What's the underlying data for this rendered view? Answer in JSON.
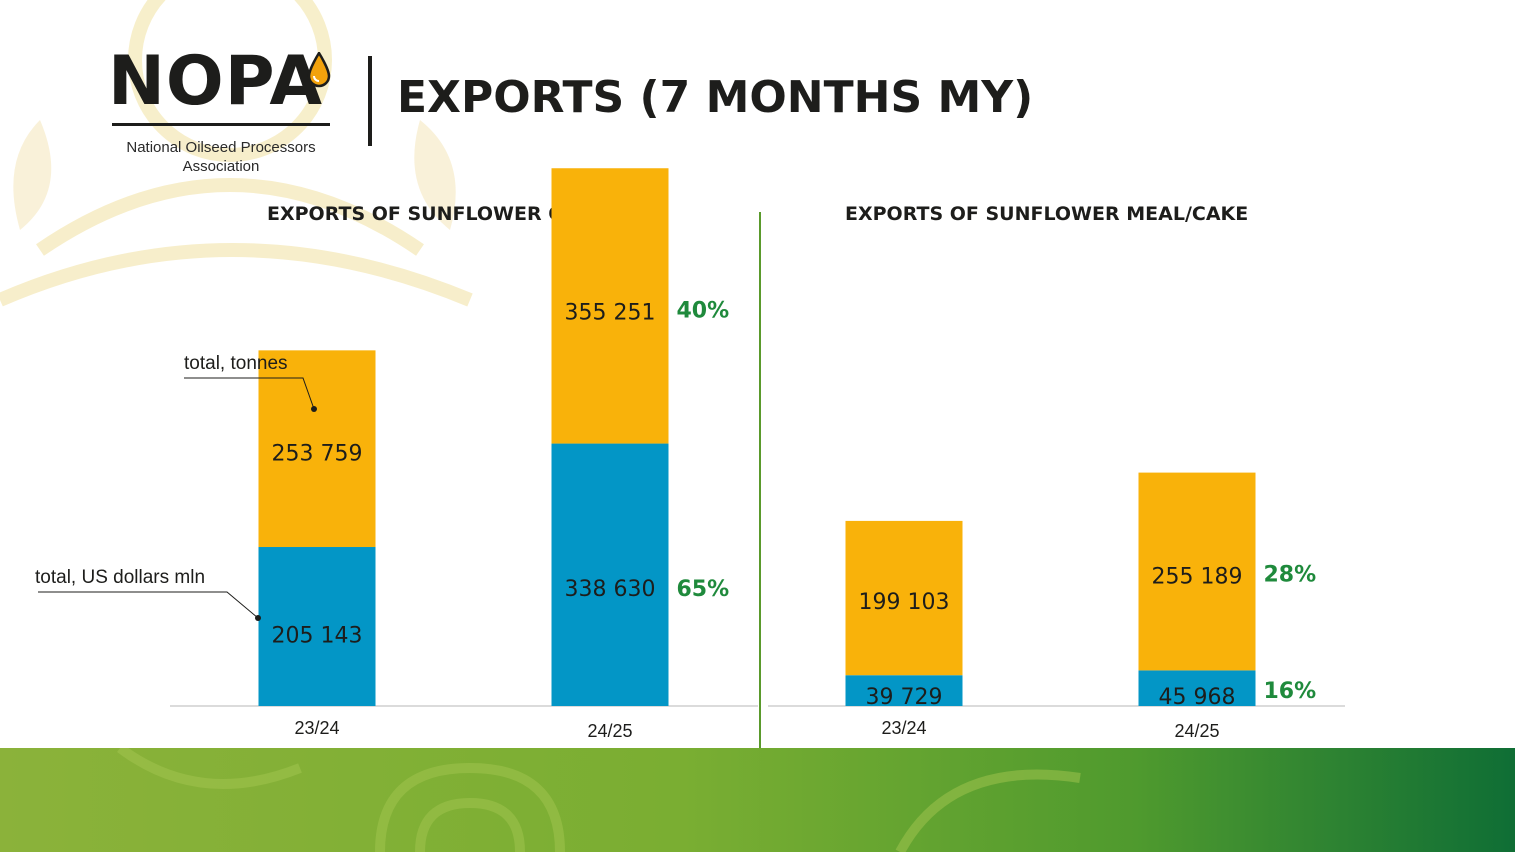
{
  "logo": {
    "wordmark": "NOPA",
    "subtitle_line1": "National Oilseed Processors",
    "subtitle_line2": "Association"
  },
  "page_title": "EXPORTS (7 MONTHS MY)",
  "colors": {
    "tonnes": "#f9b20a",
    "usd": "#0396c6",
    "growth": "#1f8a3c",
    "divider": "#5a9a2c"
  },
  "chart_data": [
    {
      "type": "bar",
      "stacked": true,
      "title": "EXPORTS OF SUNFLOWER OIL",
      "categories": [
        "23/24",
        "24/25"
      ],
      "series": [
        {
          "name": "total, US dollars mln",
          "values": [
            205143,
            338630
          ],
          "color": "#0396c6",
          "growth_labels": [
            "",
            "65%"
          ]
        },
        {
          "name": "total, tonnes",
          "values": [
            253759,
            355251
          ],
          "color": "#f9b20a",
          "growth_labels": [
            "",
            "40%"
          ]
        }
      ],
      "value_labels": [
        [
          "205 143",
          "338 630"
        ],
        [
          "253 759",
          "355 251"
        ]
      ],
      "annotations": [
        "total, tonnes",
        "total, US dollars mln"
      ],
      "ylim": [
        0,
        700000
      ],
      "grid": false,
      "legend": "none"
    },
    {
      "type": "bar",
      "stacked": true,
      "title": "EXPORTS OF SUNFLOWER MEAL/CAKE",
      "categories": [
        "23/24",
        "24/25"
      ],
      "series": [
        {
          "name": "total, US dollars mln",
          "values": [
            39729,
            45968
          ],
          "color": "#0396c6",
          "growth_labels": [
            "",
            "16%"
          ]
        },
        {
          "name": "total, tonnes",
          "values": [
            199103,
            255189
          ],
          "color": "#f9b20a",
          "growth_labels": [
            "",
            "28%"
          ]
        }
      ],
      "value_labels": [
        [
          "39 729",
          "45 968"
        ],
        [
          "199 103",
          "255 189"
        ]
      ],
      "ylim": [
        0,
        700000
      ],
      "grid": false,
      "legend": "none"
    }
  ]
}
